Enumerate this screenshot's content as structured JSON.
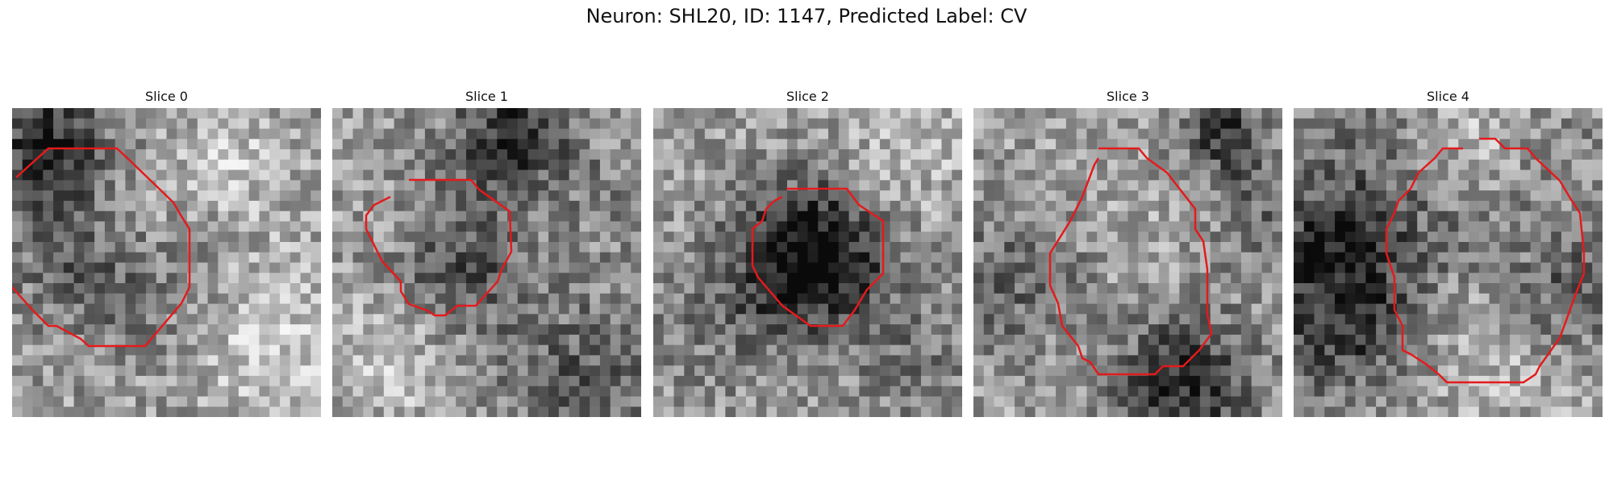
{
  "figure": {
    "title": "Neuron: SHL20, ID: 1147, Predicted Label: CV"
  },
  "panels": [
    {
      "label": "Slice 0"
    },
    {
      "label": "Slice 1"
    },
    {
      "label": "Slice 2"
    },
    {
      "label": "Slice 3"
    },
    {
      "label": "Slice 4"
    }
  ],
  "contour_color": "#e41a1c"
}
